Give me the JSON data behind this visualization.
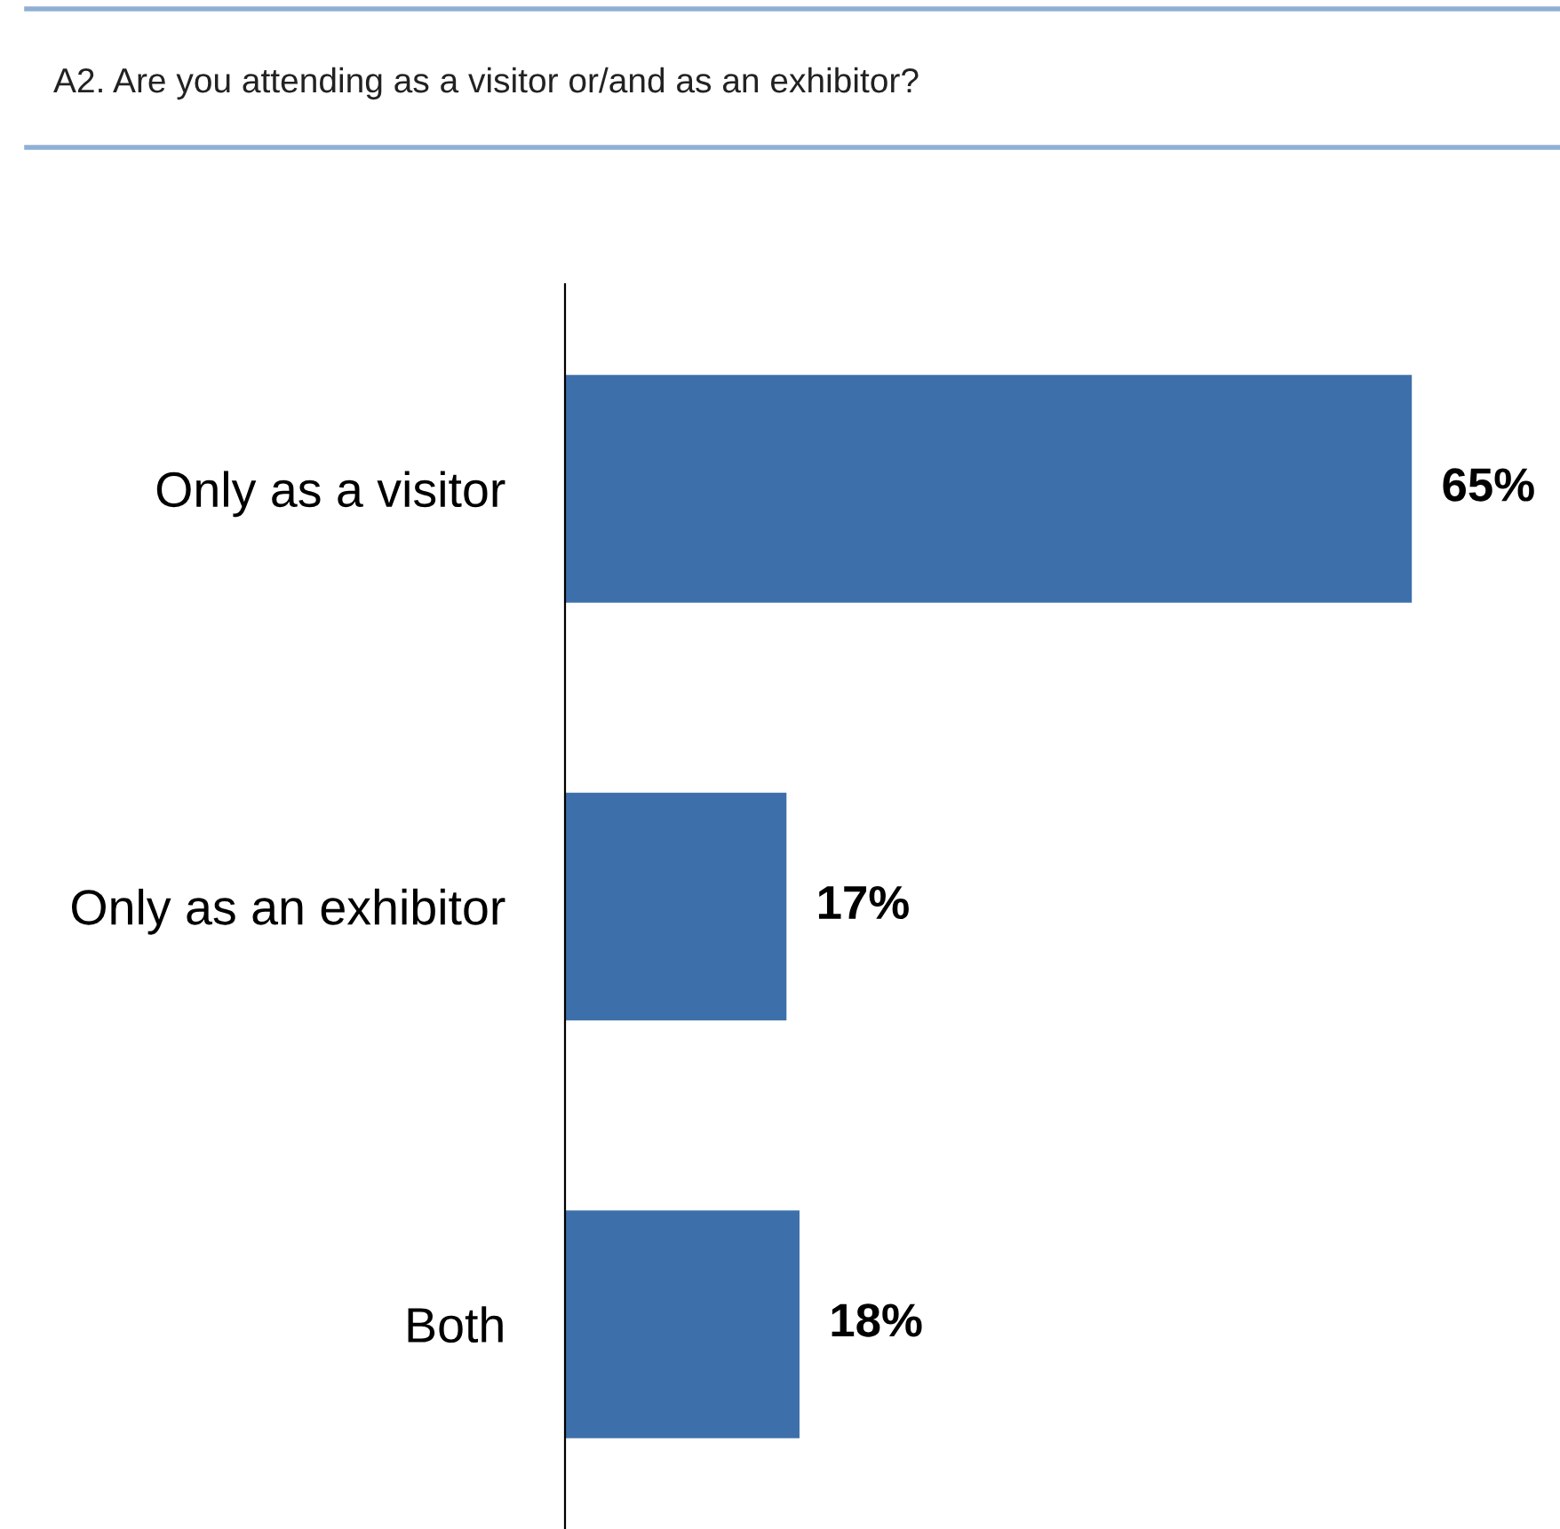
{
  "chart_data": {
    "type": "bar",
    "orientation": "horizontal",
    "title": "A2. Are you attending as a visitor or/and as an exhibitor?",
    "categories": [
      "Only as a visitor",
      "Only as an exhibitor",
      "Both"
    ],
    "values": [
      65,
      17,
      18
    ],
    "value_labels": [
      "65%",
      "17%",
      "18%"
    ],
    "color": "#3d70aa",
    "grid": false,
    "legend": false
  }
}
